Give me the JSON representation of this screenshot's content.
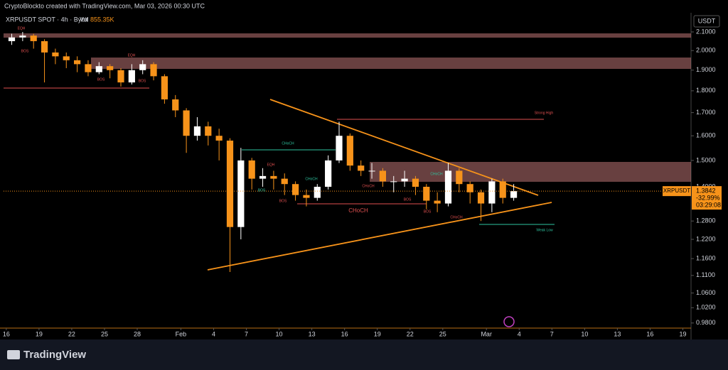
{
  "header": {
    "credit": "CryptoBlockto created with TradingView.com, Mar 03, 2026 00:30 UTC",
    "symbol": "XRPUSDT SPOT · 4h · Bybit",
    "volume_label": "Vol",
    "volume": "855.35K",
    "currency": "USDT",
    "logo": "TradingView"
  },
  "chart_data": {
    "type": "candlestick",
    "log_scale": true,
    "up_color": "#ffffff",
    "down_color": "#f7931a",
    "ticker": "XRPUSDT",
    "last": 1.3842,
    "change": "-32.99%",
    "countdown": "03:29:08",
    "x": [
      "2026-01-16",
      "2026-01-17",
      "2026-01-18",
      "2026-01-19",
      "2026-01-20",
      "2026-01-21",
      "2026-01-22",
      "2026-01-23",
      "2026-01-24",
      "2026-01-25",
      "2026-01-26",
      "2026-01-27",
      "2026-01-28",
      "2026-01-29",
      "2026-01-30",
      "2026-01-31",
      "2026-02-01",
      "2026-02-02",
      "2026-02-03",
      "2026-02-04",
      "2026-02-05",
      "2026-02-06",
      "2026-02-07",
      "2026-02-08",
      "2026-02-09",
      "2026-02-10",
      "2026-02-11",
      "2026-02-12",
      "2026-02-13",
      "2026-02-14",
      "2026-02-15",
      "2026-02-16",
      "2026-02-17",
      "2026-02-18",
      "2026-02-19",
      "2026-02-20",
      "2026-02-21",
      "2026-02-22",
      "2026-02-23",
      "2026-02-24",
      "2026-02-25",
      "2026-02-26",
      "2026-02-27",
      "2026-02-28",
      "2026-03-01",
      "2026-03-02",
      "2026-03-03"
    ],
    "open": [
      2.05,
      2.07,
      2.08,
      2.05,
      1.99,
      1.97,
      1.95,
      1.93,
      1.89,
      1.92,
      1.9,
      1.84,
      1.9,
      1.93,
      1.87,
      1.76,
      1.71,
      1.6,
      1.64,
      1.6,
      1.58,
      1.26,
      1.5,
      1.43,
      1.44,
      1.43,
      1.41,
      1.37,
      1.36,
      1.4,
      1.5,
      1.6,
      1.48,
      1.46,
      1.46,
      1.42,
      1.42,
      1.43,
      1.4,
      1.35,
      1.34,
      1.46,
      1.41,
      1.38,
      1.34,
      1.42,
      1.36
    ],
    "high": [
      2.09,
      2.1,
      2.09,
      2.06,
      2.01,
      1.99,
      1.97,
      1.95,
      1.94,
      1.93,
      1.91,
      1.93,
      1.95,
      1.94,
      1.88,
      1.78,
      1.72,
      1.68,
      1.66,
      1.63,
      1.59,
      1.55,
      1.51,
      1.47,
      1.46,
      1.45,
      1.42,
      1.39,
      1.41,
      1.52,
      1.66,
      1.61,
      1.5,
      1.49,
      1.47,
      1.44,
      1.46,
      1.44,
      1.41,
      1.38,
      1.49,
      1.47,
      1.42,
      1.39,
      1.43,
      1.43,
      1.41
    ],
    "low": [
      2.03,
      2.05,
      2.01,
      1.84,
      1.93,
      1.91,
      1.89,
      1.87,
      1.88,
      1.86,
      1.82,
      1.83,
      1.88,
      1.85,
      1.74,
      1.68,
      1.53,
      1.58,
      1.56,
      1.5,
      1.12,
      1.22,
      1.39,
      1.4,
      1.39,
      1.37,
      1.35,
      1.33,
      1.35,
      1.39,
      1.49,
      1.46,
      1.44,
      1.43,
      1.4,
      1.38,
      1.4,
      1.37,
      1.32,
      1.31,
      1.33,
      1.38,
      1.34,
      1.28,
      1.31,
      1.34,
      1.35
    ],
    "close": [
      2.07,
      2.08,
      2.05,
      1.99,
      1.97,
      1.95,
      1.93,
      1.89,
      1.92,
      1.9,
      1.84,
      1.9,
      1.93,
      1.87,
      1.76,
      1.71,
      1.6,
      1.64,
      1.6,
      1.58,
      1.26,
      1.5,
      1.43,
      1.44,
      1.43,
      1.41,
      1.37,
      1.36,
      1.4,
      1.5,
      1.6,
      1.48,
      1.46,
      1.46,
      1.42,
      1.42,
      1.43,
      1.4,
      1.35,
      1.34,
      1.46,
      1.41,
      1.38,
      1.34,
      1.42,
      1.36,
      1.3842
    ],
    "xlim": [
      "2026-01-15T18:00",
      "2026-03-19T18:00"
    ],
    "xticks": [
      {
        "value": "2026-01-16",
        "label": "16"
      },
      {
        "value": "2026-01-19",
        "label": "19"
      },
      {
        "value": "2026-01-22",
        "label": "22"
      },
      {
        "value": "2026-01-25",
        "label": "25"
      },
      {
        "value": "2026-01-28",
        "label": "28"
      },
      {
        "value": "2026-02-01",
        "label": "Feb"
      },
      {
        "value": "2026-02-04",
        "label": "4"
      },
      {
        "value": "2026-02-07",
        "label": "7"
      },
      {
        "value": "2026-02-10",
        "label": "10"
      },
      {
        "value": "2026-02-13",
        "label": "13"
      },
      {
        "value": "2026-02-16",
        "label": "16"
      },
      {
        "value": "2026-02-19",
        "label": "19"
      },
      {
        "value": "2026-02-22",
        "label": "22"
      },
      {
        "value": "2026-02-25",
        "label": "25"
      },
      {
        "value": "2026-03-01",
        "label": "Mar"
      },
      {
        "value": "2026-03-04",
        "label": "4"
      },
      {
        "value": "2026-03-07",
        "label": "7"
      },
      {
        "value": "2026-03-10",
        "label": "10"
      },
      {
        "value": "2026-03-13",
        "label": "13"
      },
      {
        "value": "2026-03-16",
        "label": "16"
      },
      {
        "value": "2026-03-19",
        "label": "19"
      }
    ],
    "ylim": [
      0.967,
      2.208
    ],
    "yticks": [
      {
        "value": 2.1,
        "label": "2.1000"
      },
      {
        "value": 2.0,
        "label": "2.0000"
      },
      {
        "value": 1.9,
        "label": "1.9000"
      },
      {
        "value": 1.8,
        "label": "1.8000"
      },
      {
        "value": 1.7,
        "label": "1.7000"
      },
      {
        "value": 1.6,
        "label": "1.6000"
      },
      {
        "value": 1.5,
        "label": "1.5000"
      },
      {
        "value": 1.4,
        "label": "1.4000"
      },
      {
        "value": 1.28,
        "label": "1.2800"
      },
      {
        "value": 1.22,
        "label": "1.2200"
      },
      {
        "value": 1.16,
        "label": "1.1600"
      },
      {
        "value": 1.11,
        "label": "1.1100"
      },
      {
        "value": 1.06,
        "label": "1.0600"
      },
      {
        "value": 1.02,
        "label": "1.0200"
      },
      {
        "value": 0.98,
        "label": "0.9800"
      }
    ],
    "annotations": [
      "EQH",
      "BOS",
      "EQH",
      "BOS",
      "BOS",
      "CHoCH",
      "EQH",
      "BOS",
      "BOS",
      "CHoCH",
      "CHoCH",
      "CHoCH",
      "BOS",
      "CHoCH",
      "BOS",
      "CHoCH",
      "Strong High",
      "Weak Low"
    ]
  }
}
